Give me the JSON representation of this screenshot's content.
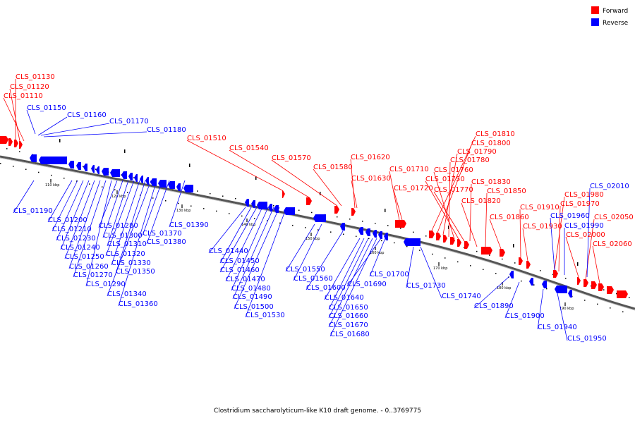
{
  "caption": "Clostridium saccharolyticum-like K10 draft genome. - 0..3769775",
  "legend": [
    {
      "label": "Forward",
      "color": "#ff0000"
    },
    {
      "label": "Reverse",
      "color": "#0000ff"
    }
  ],
  "colors": {
    "forward": "#ff0000",
    "reverse": "#0000ff",
    "backbone": "#777777"
  },
  "ticks": [
    {
      "label": "110 kbp",
      "kbp": 110
    },
    {
      "label": "120 kbp",
      "kbp": 120
    },
    {
      "label": "130 kbp",
      "kbp": 130
    },
    {
      "label": "140 kbp",
      "kbp": 140
    },
    {
      "label": "150 kbp",
      "kbp": 150
    },
    {
      "label": "160 kbp",
      "kbp": 160
    },
    {
      "label": "170 kbp",
      "kbp": 170
    },
    {
      "label": "180 kbp",
      "kbp": 180
    },
    {
      "label": "190 kbp",
      "kbp": 190
    }
  ],
  "forward_labels": [
    "CLS_01130",
    "CLS_01120",
    "CLS_01110",
    "CLS_01510",
    "CLS_01540",
    "CLS_01570",
    "CLS_01580",
    "CLS_01620",
    "CLS_01630",
    "CLS_01710",
    "CLS_01720",
    "CLS_01810",
    "CLS_01800",
    "CLS_01790",
    "CLS_01780",
    "CLS_01760",
    "CLS_01750",
    "CLS_01770",
    "CLS_01830",
    "CLS_01850",
    "CLS_01820",
    "CLS_01860",
    "CLS_01910",
    "CLS_01930",
    "CLS_01980",
    "CLS_01970",
    "CLS_02050",
    "CLS_02000",
    "CLS_02060"
  ],
  "reverse_labels": [
    "CLS_01150",
    "CLS_01160",
    "CLS_01170",
    "CLS_01180",
    "CLS_01190",
    "CLS_01200",
    "CLS_01210",
    "CLS_01230",
    "CLS_01240",
    "CLS_01250",
    "CLS_01260",
    "CLS_01270",
    "CLS_01290",
    "CLS_01280",
    "CLS_01300",
    "CLS_01310",
    "CLS_01320",
    "CLS_01330",
    "CLS_01350",
    "CLS_01340",
    "CLS_01360",
    "CLS_01370",
    "CLS_01380",
    "CLS_01390",
    "CLS_01440",
    "CLS_01450",
    "CLS_01460",
    "CLS_01470",
    "CLS_01480",
    "CLS_01490",
    "CLS_01500",
    "CLS_01530",
    "CLS_01550",
    "CLS_01560",
    "CLS_01600",
    "CLS_01640",
    "CLS_01650",
    "CLS_01660",
    "CLS_01670",
    "CLS_01680",
    "CLS_01690",
    "CLS_01700",
    "CLS_01730",
    "CLS_01740",
    "CLS_01890",
    "CLS_01900",
    "CLS_01940",
    "CLS_01950",
    "CLS_01960",
    "CLS_01990",
    "CLS_02010"
  ]
}
